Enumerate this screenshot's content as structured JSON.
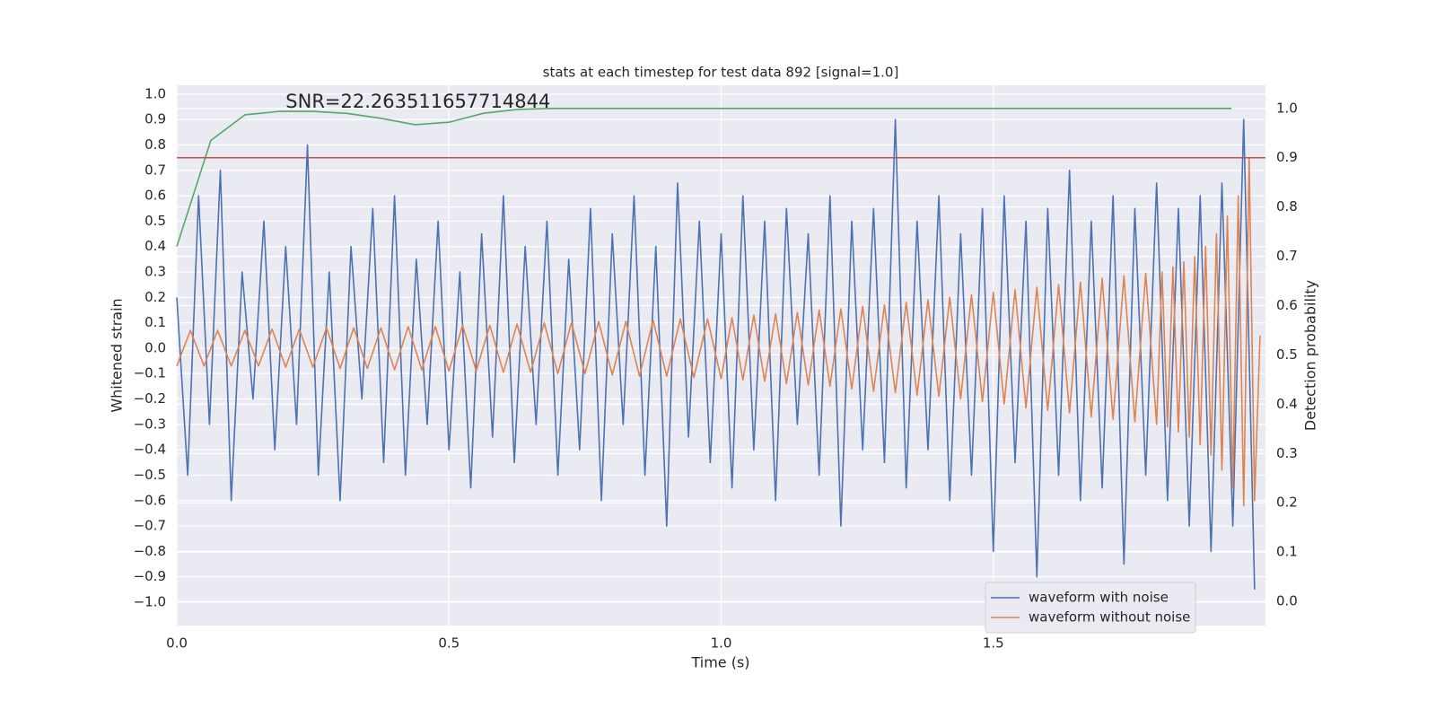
{
  "chart_data": {
    "type": "line",
    "title": "stats at each timestep for test data 892 [signal=1.0]",
    "xlabel": "Time (s)",
    "ylabel": "Whitened strain",
    "y2label": "Detection probability",
    "annotation": "SNR=22.263511657714844",
    "xlim": [
      0,
      2.0
    ],
    "ylim": [
      -1.092,
      1.035
    ],
    "y2lim": [
      -0.049,
      1.047
    ],
    "xticks": [
      {
        "value": 0,
        "label": "0.0"
      },
      {
        "value": 0.5,
        "label": "0.5"
      },
      {
        "value": 1.0,
        "label": "1.0"
      },
      {
        "value": 1.5,
        "label": "1.5"
      }
    ],
    "yticks": [
      {
        "value": -1.0,
        "label": "−1.0"
      },
      {
        "value": -0.9,
        "label": "−0.9"
      },
      {
        "value": -0.8,
        "label": "−0.8"
      },
      {
        "value": -0.7,
        "label": "−0.7"
      },
      {
        "value": -0.6,
        "label": "−0.6"
      },
      {
        "value": -0.5,
        "label": "−0.5"
      },
      {
        "value": -0.4,
        "label": "−0.4"
      },
      {
        "value": -0.3,
        "label": "−0.3"
      },
      {
        "value": -0.2,
        "label": "−0.2"
      },
      {
        "value": -0.1,
        "label": "−0.1"
      },
      {
        "value": 0,
        "label": "0.0"
      },
      {
        "value": 0.1,
        "label": "0.1"
      },
      {
        "value": 0.2,
        "label": "0.2"
      },
      {
        "value": 0.3,
        "label": "0.3"
      },
      {
        "value": 0.4,
        "label": "0.4"
      },
      {
        "value": 0.5,
        "label": "0.5"
      },
      {
        "value": 0.6,
        "label": "0.6"
      },
      {
        "value": 0.7,
        "label": "0.7"
      },
      {
        "value": 0.8,
        "label": "0.8"
      },
      {
        "value": 0.9,
        "label": "0.9"
      },
      {
        "value": 1.0,
        "label": "1.0"
      }
    ],
    "y2ticks": [
      {
        "value": 0,
        "label": "0.0"
      },
      {
        "value": 0.1,
        "label": "0.1"
      },
      {
        "value": 0.2,
        "label": "0.2"
      },
      {
        "value": 0.3,
        "label": "0.3"
      },
      {
        "value": 0.4,
        "label": "0.4"
      },
      {
        "value": 0.5,
        "label": "0.5"
      },
      {
        "value": 0.6,
        "label": "0.6"
      },
      {
        "value": 0.7,
        "label": "0.7"
      },
      {
        "value": 0.8,
        "label": "0.8"
      },
      {
        "value": 0.9,
        "label": "0.9"
      },
      {
        "value": 1.0,
        "label": "1.0"
      }
    ],
    "grid": true,
    "legend": "lower right",
    "hlines": [
      {
        "axis": "y2",
        "value": 0.9,
        "color": "#c44e52"
      }
    ],
    "series": [
      {
        "name": "waveform with noise",
        "color": "#4c72b0",
        "x": [
          0,
          0.02,
          0.04,
          0.06,
          0.08,
          0.1,
          0.12,
          0.14,
          0.16,
          0.18,
          0.2,
          0.22,
          0.24,
          0.26,
          0.28,
          0.3,
          0.32,
          0.34,
          0.36,
          0.38,
          0.4,
          0.42,
          0.44,
          0.46,
          0.48,
          0.5,
          0.52,
          0.54,
          0.56,
          0.58,
          0.6,
          0.62,
          0.64,
          0.66,
          0.68,
          0.7,
          0.72,
          0.74,
          0.76,
          0.78,
          0.8,
          0.82,
          0.84,
          0.86,
          0.88,
          0.9,
          0.92,
          0.94,
          0.96,
          0.98,
          1.0,
          1.02,
          1.04,
          1.06,
          1.08,
          1.1,
          1.12,
          1.14,
          1.16,
          1.18,
          1.2,
          1.22,
          1.24,
          1.26,
          1.28,
          1.3,
          1.32,
          1.34,
          1.36,
          1.38,
          1.4,
          1.42,
          1.44,
          1.46,
          1.48,
          1.5,
          1.52,
          1.54,
          1.56,
          1.58,
          1.6,
          1.62,
          1.64,
          1.66,
          1.68,
          1.7,
          1.72,
          1.74,
          1.76,
          1.78,
          1.8,
          1.82,
          1.84,
          1.86,
          1.88,
          1.9,
          1.92,
          1.94,
          1.96,
          1.98
        ],
        "values": [
          0.2,
          -0.5,
          0.6,
          -0.3,
          0.7,
          -0.6,
          0.3,
          -0.2,
          0.5,
          -0.4,
          0.4,
          -0.3,
          0.8,
          -0.5,
          0.3,
          -0.6,
          0.4,
          -0.2,
          0.55,
          -0.45,
          0.6,
          -0.5,
          0.35,
          -0.3,
          0.5,
          -0.4,
          0.3,
          -0.55,
          0.45,
          -0.35,
          0.6,
          -0.45,
          0.4,
          -0.3,
          0.5,
          -0.5,
          0.35,
          -0.4,
          0.55,
          -0.6,
          0.45,
          -0.3,
          0.6,
          -0.5,
          0.4,
          -0.7,
          0.65,
          -0.35,
          0.5,
          -0.45,
          0.45,
          -0.55,
          0.6,
          -0.4,
          0.5,
          -0.6,
          0.55,
          -0.3,
          0.45,
          -0.5,
          0.6,
          -0.7,
          0.5,
          -0.4,
          0.55,
          -0.45,
          0.9,
          -0.55,
          0.5,
          -0.4,
          0.6,
          -0.6,
          0.45,
          -0.5,
          0.55,
          -0.8,
          0.6,
          -0.45,
          0.5,
          -0.9,
          0.55,
          -0.5,
          0.7,
          -0.6,
          0.5,
          -0.55,
          0.6,
          -0.85,
          0.55,
          -0.5,
          0.65,
          -0.6,
          0.55,
          -0.7,
          0.6,
          -0.8,
          0.65,
          -0.7,
          0.9,
          -0.95
        ]
      },
      {
        "name": "waveform without noise",
        "color": "#dd8452",
        "x": [
          0,
          0.025,
          0.05,
          0.075,
          0.1,
          0.125,
          0.15,
          0.175,
          0.2,
          0.225,
          0.25,
          0.275,
          0.3,
          0.325,
          0.35,
          0.375,
          0.4,
          0.425,
          0.45,
          0.475,
          0.5,
          0.525,
          0.55,
          0.575,
          0.6,
          0.625,
          0.65,
          0.675,
          0.7,
          0.725,
          0.75,
          0.775,
          0.8,
          0.825,
          0.85,
          0.875,
          0.9,
          0.925,
          0.95,
          0.975,
          1.0,
          1.02,
          1.04,
          1.06,
          1.08,
          1.1,
          1.12,
          1.14,
          1.16,
          1.18,
          1.2,
          1.22,
          1.24,
          1.26,
          1.28,
          1.3,
          1.32,
          1.34,
          1.36,
          1.38,
          1.4,
          1.42,
          1.44,
          1.46,
          1.48,
          1.5,
          1.52,
          1.54,
          1.56,
          1.58,
          1.6,
          1.62,
          1.64,
          1.66,
          1.68,
          1.7,
          1.72,
          1.74,
          1.76,
          1.78,
          1.8,
          1.81,
          1.82,
          1.83,
          1.84,
          1.85,
          1.86,
          1.87,
          1.88,
          1.89,
          1.9,
          1.91,
          1.92,
          1.93,
          1.94,
          1.95,
          1.96,
          1.97,
          1.98,
          1.99
        ],
        "values": [
          -0.07,
          0.07,
          -0.07,
          0.07,
          -0.07,
          0.07,
          -0.07,
          0.075,
          -0.075,
          0.075,
          -0.075,
          0.08,
          -0.08,
          0.08,
          -0.08,
          0.08,
          -0.085,
          0.085,
          -0.085,
          0.085,
          -0.09,
          0.09,
          -0.09,
          0.09,
          -0.095,
          0.095,
          -0.095,
          0.1,
          -0.1,
          0.1,
          -0.1,
          0.105,
          -0.105,
          0.105,
          -0.11,
          0.11,
          -0.11,
          0.115,
          -0.115,
          0.115,
          -0.12,
          0.12,
          -0.125,
          0.13,
          -0.13,
          0.135,
          -0.14,
          0.14,
          -0.145,
          0.15,
          -0.15,
          0.155,
          -0.16,
          0.165,
          -0.17,
          0.17,
          -0.175,
          0.18,
          -0.185,
          0.19,
          -0.19,
          0.2,
          -0.2,
          0.21,
          -0.21,
          0.22,
          -0.22,
          0.23,
          -0.235,
          0.24,
          -0.245,
          0.25,
          -0.255,
          0.26,
          -0.27,
          0.275,
          -0.28,
          0.285,
          -0.29,
          0.295,
          -0.3,
          0.3,
          -0.31,
          0.32,
          -0.33,
          0.34,
          -0.35,
          0.36,
          -0.38,
          0.4,
          -0.42,
          0.45,
          -0.48,
          0.52,
          -0.55,
          0.6,
          -0.62,
          0.75,
          -0.6,
          0.05
        ]
      },
      {
        "axis": "y2",
        "color": "#55a868",
        "x": [
          0,
          0.0625,
          0.125,
          0.1875,
          0.25,
          0.3125,
          0.375,
          0.4375,
          0.5,
          0.5625,
          0.625,
          0.6875,
          1.9375
        ],
        "values": [
          0.72,
          0.935,
          0.987,
          0.994,
          0.994,
          0.99,
          0.98,
          0.967,
          0.972,
          0.99,
          0.998,
          1.0,
          1.0
        ]
      }
    ]
  }
}
